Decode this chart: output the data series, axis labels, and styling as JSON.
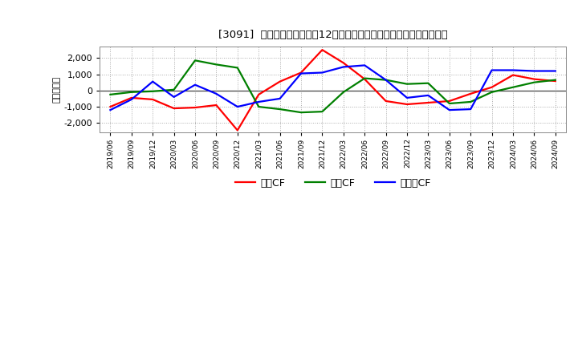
{
  "title": "[3091]  キャッシュフローの12か月移動合計の対前年同期増減額の推移",
  "ylabel": "（百万円）",
  "x_labels": [
    "2019/06",
    "2019/09",
    "2019/12",
    "2020/03",
    "2020/06",
    "2020/09",
    "2020/12",
    "2021/03",
    "2021/06",
    "2021/09",
    "2021/12",
    "2022/03",
    "2022/06",
    "2022/09",
    "2022/12",
    "2023/03",
    "2023/06",
    "2023/09",
    "2023/12",
    "2024/03",
    "2024/06",
    "2024/09"
  ],
  "operating_cf": [
    -1000,
    -450,
    -550,
    -1100,
    -1050,
    -900,
    -2450,
    -250,
    550,
    1100,
    2500,
    1700,
    700,
    -650,
    -850,
    -750,
    -650,
    -200,
    200,
    950,
    700,
    580
  ],
  "investing_cf": [
    -250,
    -100,
    -50,
    50,
    1850,
    1600,
    1400,
    -1000,
    -1150,
    -1350,
    -1300,
    -100,
    750,
    650,
    400,
    450,
    -800,
    -700,
    -100,
    200,
    500,
    650
  ],
  "free_cf": [
    -1200,
    -550,
    550,
    -400,
    350,
    -200,
    -1000,
    -700,
    -500,
    1050,
    1100,
    1450,
    1550,
    650,
    -450,
    -300,
    -1200,
    -1150,
    1250,
    1250,
    1200,
    1200
  ],
  "operating_color": "#ff0000",
  "investing_color": "#008000",
  "free_color": "#0000ff",
  "legend_operating": "営業CF",
  "legend_investing": "投資CF",
  "legend_free": "フリーCF",
  "ylim": [
    -2600,
    2700
  ],
  "yticks": [
    -2000,
    -1000,
    0,
    1000,
    2000
  ],
  "background_color": "#ffffff"
}
